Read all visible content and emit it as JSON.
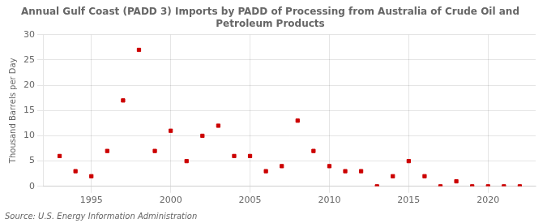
{
  "chart_data": {
    "type": "scatter",
    "title": "Annual Gulf Coast (PADD 3) Imports by PADD of Processing from Australia of Crude Oil and\nPetroleum Products",
    "y_label": "Thousand Barrels per Day",
    "annotations": [
      "Source: U.S. Energy Information Administration"
    ],
    "x": [
      1993,
      1994,
      1995,
      1996,
      1997,
      1998,
      1999,
      2000,
      2001,
      2002,
      2003,
      2004,
      2005,
      2006,
      2007,
      2008,
      2009,
      2010,
      2011,
      2012,
      2013,
      2014,
      2015,
      2016,
      2017,
      2018,
      2019,
      2020,
      2021,
      2022
    ],
    "values": [
      6.0,
      3.0,
      2.0,
      7.0,
      17.0,
      27.0,
      7.0,
      11.0,
      5.0,
      10.0,
      12.0,
      6.0,
      6.0,
      3.0,
      4.0,
      13.0,
      7.0,
      4.0,
      3.0,
      3.0,
      0.0,
      2.0,
      5.0,
      2.0,
      0.0,
      1.0,
      0.0,
      0.0,
      0.0,
      0.0
    ],
    "color": "#cc0000",
    "marker": "square",
    "xlim": [
      1992,
      2023
    ],
    "xticks": [
      1995,
      2000,
      2005,
      2010,
      2015,
      2020
    ],
    "ylim": [
      0,
      30
    ],
    "yticks": [
      0,
      5,
      10,
      15,
      20,
      25,
      30
    ],
    "grid": true
  }
}
